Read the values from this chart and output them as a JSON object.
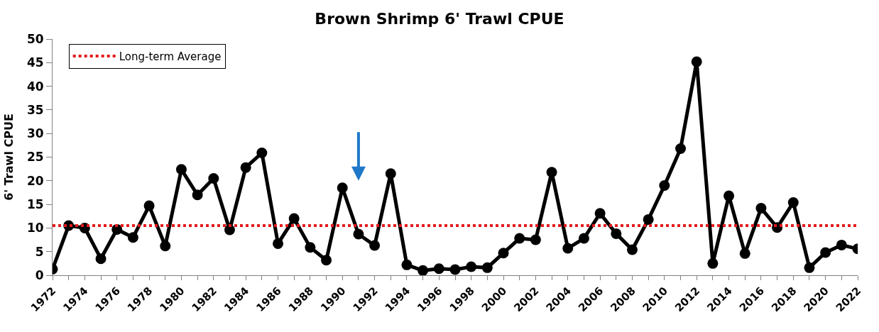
{
  "chart_data": {
    "type": "line",
    "title": "Brown Shrimp 6' Trawl CPUE",
    "ylabel": "6' Trawl CPUE",
    "x": [
      1972,
      1973,
      1974,
      1975,
      1976,
      1977,
      1978,
      1979,
      1980,
      1981,
      1982,
      1983,
      1984,
      1985,
      1986,
      1987,
      1988,
      1989,
      1990,
      1991,
      1992,
      1993,
      1994,
      1995,
      1996,
      1997,
      1998,
      1999,
      2000,
      2001,
      2002,
      2003,
      2004,
      2005,
      2006,
      2007,
      2008,
      2009,
      2010,
      2011,
      2012,
      2013,
      2014,
      2015,
      2016,
      2017,
      2018,
      2019,
      2020,
      2021,
      2022
    ],
    "series": [
      {
        "color": "#000000",
        "values": [
          1.3,
          10.5,
          10.0,
          3.5,
          9.7,
          8.0,
          14.7,
          6.2,
          22.4,
          17.0,
          20.5,
          9.6,
          22.8,
          25.9,
          6.7,
          12.0,
          5.9,
          3.2,
          18.5,
          8.7,
          6.3,
          21.5,
          2.2,
          1.0,
          1.4,
          1.2,
          1.8,
          1.6,
          4.7,
          7.8,
          7.5,
          21.8,
          5.7,
          7.8,
          13.1,
          8.8,
          5.4,
          11.8,
          19.0,
          26.8,
          45.2,
          2.5,
          16.8,
          4.6,
          14.2,
          10.1,
          15.4,
          1.6,
          4.8,
          6.4,
          5.6
        ]
      }
    ],
    "ref_lines": [
      {
        "axis": "y",
        "value": 10.5,
        "label": "Long-term Average",
        "color": "#e31a1c",
        "line_style": "dotted"
      }
    ],
    "xlim": [
      1972,
      2022
    ],
    "xticks": [
      1972,
      {
        "value": 1973,
        "label": null
      },
      1974,
      {
        "value": 1975,
        "label": null
      },
      1976,
      {
        "value": 1977,
        "label": null
      },
      1978,
      {
        "value": 1979,
        "label": null
      },
      1980,
      {
        "value": 1981,
        "label": null
      },
      1982,
      {
        "value": 1983,
        "label": null
      },
      1984,
      {
        "value": 1985,
        "label": null
      },
      1986,
      {
        "value": 1987,
        "label": null
      },
      1988,
      {
        "value": 1989,
        "label": null
      },
      1990,
      {
        "value": 1991,
        "label": null
      },
      1992,
      {
        "value": 1993,
        "label": null
      },
      1994,
      {
        "value": 1995,
        "label": null
      },
      1996,
      {
        "value": 1997,
        "label": null
      },
      1998,
      {
        "value": 1999,
        "label": null
      },
      2000,
      {
        "value": 2001,
        "label": null
      },
      2002,
      {
        "value": 2003,
        "label": null
      },
      2004,
      {
        "value": 2005,
        "label": null
      },
      2006,
      {
        "value": 2007,
        "label": null
      },
      2008,
      {
        "value": 2009,
        "label": null
      },
      2010,
      {
        "value": 2011,
        "label": null
      },
      2012,
      {
        "value": 2013,
        "label": null
      },
      2014,
      {
        "value": 2015,
        "label": null
      },
      2016,
      {
        "value": 2017,
        "label": null
      },
      2018,
      {
        "value": 2019,
        "label": null
      },
      2020,
      {
        "value": 2021,
        "label": null
      },
      2022
    ],
    "ylim": [
      0,
      50
    ],
    "yticks": [
      0,
      5,
      10,
      15,
      20,
      25,
      30,
      35,
      40,
      45,
      50
    ],
    "legend": "top left",
    "marker": "circle",
    "line_style": "solid"
  }
}
